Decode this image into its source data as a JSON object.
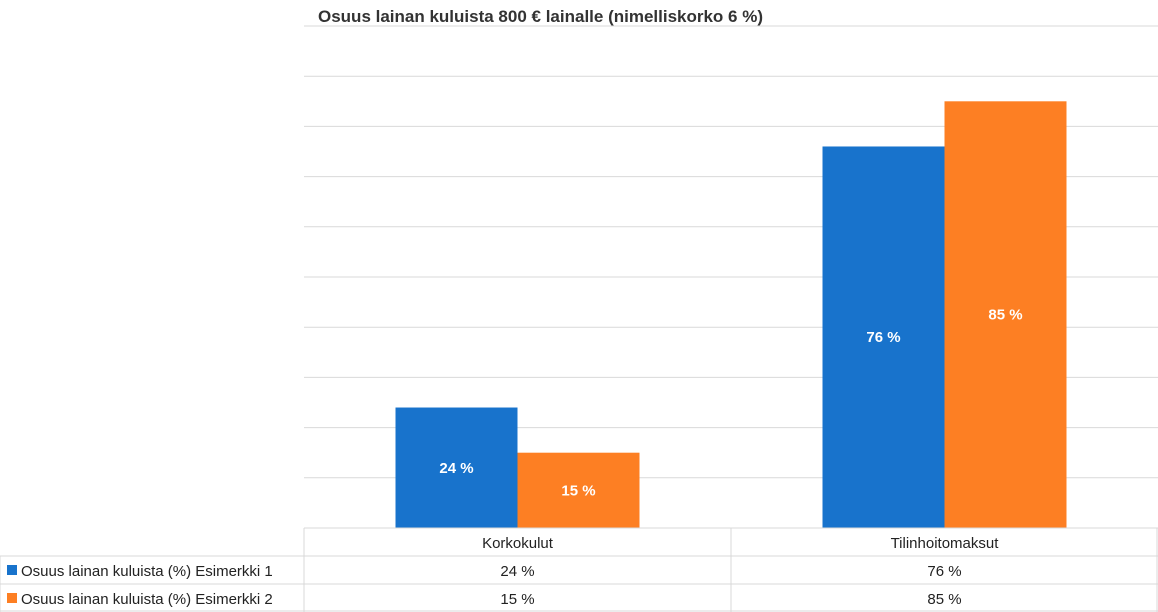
{
  "chart_data": {
    "type": "bar",
    "title": "Osuus lainan kuluista 800 € lainalle (nimelliskorko 6 %)",
    "categories": [
      "Korkokulut",
      "Tilinhoitomaksut"
    ],
    "series": [
      {
        "name": "Osuus lainan kuluista (%) Esimerkki 1",
        "values": [
          24,
          76
        ],
        "labels": [
          "24 %",
          "76 %"
        ],
        "color": "#1873CC"
      },
      {
        "name": "Osuus lainan kuluista (%) Esimerkki 2",
        "values": [
          15,
          85
        ],
        "labels": [
          "15 %",
          "85 %"
        ],
        "color": "#FD7F23"
      }
    ],
    "ylim": [
      0,
      100
    ],
    "grid": true,
    "legend": "data-table-below"
  }
}
